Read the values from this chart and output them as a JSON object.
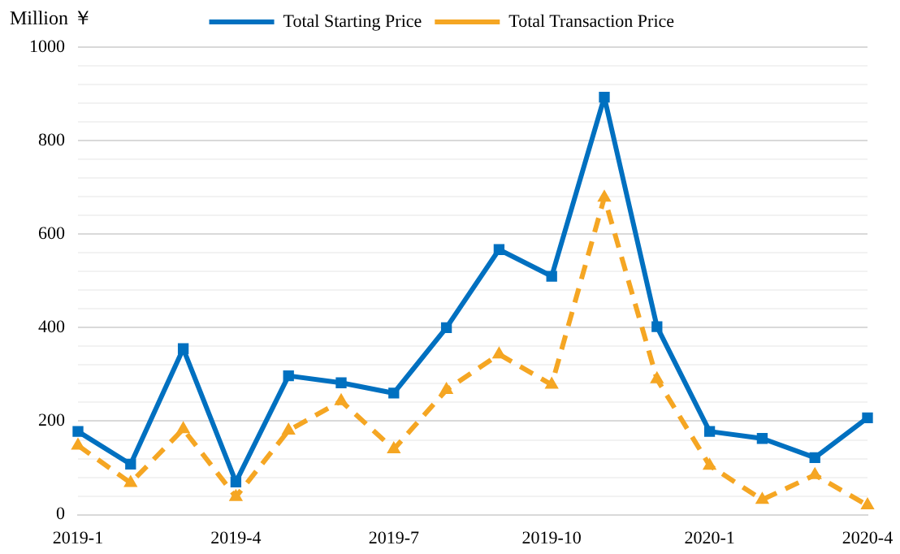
{
  "chart_data": {
    "type": "line",
    "ylabel": "Million ￥",
    "categories": [
      "2019-1",
      null,
      null,
      "2019-4",
      null,
      null,
      "2019-7",
      null,
      null,
      "2019-10",
      null,
      null,
      "2020-1",
      null,
      null,
      "2020-4"
    ],
    "series": [
      {
        "name": "Total Starting Price",
        "color": "#0070c0",
        "marker": "square",
        "line_style": "solid",
        "values": [
          178,
          108,
          355,
          70,
          297,
          282,
          260,
          400,
          567,
          510,
          893,
          402,
          178,
          163,
          122,
          207
        ]
      },
      {
        "name": "Total Transaction Price",
        "color": "#f5a623",
        "marker": "triangle",
        "line_style": "dashed",
        "values": [
          148,
          68,
          183,
          38,
          180,
          243,
          140,
          267,
          343,
          278,
          678,
          290,
          105,
          32,
          85,
          20
        ]
      }
    ],
    "ylim": [
      0,
      1000
    ],
    "yticks": [
      0,
      {
        "value": 40,
        "label": null
      },
      {
        "value": 80,
        "label": null
      },
      {
        "value": 120,
        "label": null
      },
      {
        "value": 160,
        "label": null
      },
      200,
      {
        "value": 240,
        "label": null
      },
      {
        "value": 280,
        "label": null
      },
      {
        "value": 320,
        "label": null
      },
      {
        "value": 360,
        "label": null
      },
      400,
      {
        "value": 440,
        "label": null
      },
      {
        "value": 480,
        "label": null
      },
      {
        "value": 520,
        "label": null
      },
      {
        "value": 560,
        "label": null
      },
      600,
      {
        "value": 640,
        "label": null
      },
      {
        "value": 680,
        "label": null
      },
      {
        "value": 720,
        "label": null
      },
      {
        "value": 760,
        "label": null
      },
      800,
      {
        "value": 840,
        "label": null
      },
      {
        "value": 880,
        "label": null
      },
      {
        "value": 920,
        "label": null
      },
      {
        "value": 960,
        "label": null
      },
      1000
    ],
    "grid": "y",
    "legend": "top"
  }
}
